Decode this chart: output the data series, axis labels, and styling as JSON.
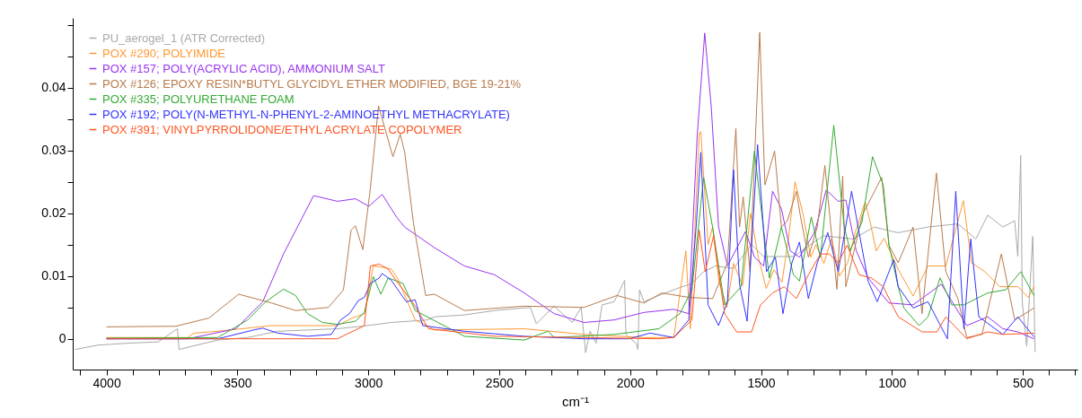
{
  "chart_data": {
    "type": "line",
    "xlabel": "cm⁻¹",
    "legend": "top left",
    "grid": false,
    "xlim": [
      4129,
      291
    ],
    "ylim": [
      -0.0049,
      0.0511
    ],
    "xticks": [
      {
        "value": 4100,
        "label": null
      },
      4000,
      {
        "value": 3900,
        "label": null
      },
      {
        "value": 3800,
        "label": null
      },
      {
        "value": 3700,
        "label": null
      },
      {
        "value": 3600,
        "label": null
      },
      3500,
      {
        "value": 3400,
        "label": null
      },
      {
        "value": 3300,
        "label": null
      },
      {
        "value": 3200,
        "label": null
      },
      {
        "value": 3100,
        "label": null
      },
      3000,
      {
        "value": 2900,
        "label": null
      },
      {
        "value": 2800,
        "label": null
      },
      {
        "value": 2700,
        "label": null
      },
      {
        "value": 2600,
        "label": null
      },
      2500,
      {
        "value": 2400,
        "label": null
      },
      {
        "value": 2300,
        "label": null
      },
      {
        "value": 2200,
        "label": null
      },
      {
        "value": 2100,
        "label": null
      },
      2000,
      {
        "value": 1900,
        "label": null
      },
      {
        "value": 1800,
        "label": null
      },
      {
        "value": 1700,
        "label": null
      },
      {
        "value": 1600,
        "label": null
      },
      1500,
      {
        "value": 1400,
        "label": null
      },
      {
        "value": 1300,
        "label": null
      },
      {
        "value": 1200,
        "label": null
      },
      {
        "value": 1100,
        "label": null
      },
      1000,
      {
        "value": 900,
        "label": null
      },
      {
        "value": 800,
        "label": null
      },
      {
        "value": 700,
        "label": null
      },
      {
        "value": 600,
        "label": null
      },
      500,
      {
        "value": 400,
        "label": null
      },
      {
        "value": 300,
        "label": null
      }
    ],
    "yticks": [
      0,
      {
        "value": 0.005,
        "label": null
      },
      0.01,
      {
        "value": 0.015,
        "label": null
      },
      0.02,
      {
        "value": 0.025,
        "label": null
      },
      0.03,
      {
        "value": 0.035,
        "label": null
      },
      0.04,
      {
        "value": 0.045,
        "label": null
      },
      {
        "value": 0.05,
        "label": null
      }
    ],
    "series": [
      {
        "name": "PU_aerogel_1 (ATR Corrected)",
        "color": "#a9a9a9",
        "x": [
          4120,
          4032,
          3918,
          3803,
          3729,
          3723,
          3575,
          3461,
          3346,
          3232,
          3118,
          3004,
          2912,
          2775,
          2747,
          2633,
          2518,
          2381,
          2358,
          2290,
          2221,
          2187,
          2170,
          2153,
          2130,
          2107,
          2061,
          2021,
          2016,
          1976,
          1970,
          1964,
          1947,
          1890,
          1821,
          1764,
          1719,
          1673,
          1605,
          1536,
          1490,
          1376,
          1262,
          1148,
          1068,
          999,
          976,
          862,
          748,
          679,
          634,
          576,
          531,
          519,
          508,
          502,
          485,
          462,
          453
        ],
        "values": [
          -0.0017,
          -0.001,
          -0.0007,
          -0.0005,
          0.0016,
          -0.0017,
          -0.0002,
          0.0002,
          0.0012,
          0.0014,
          0.0016,
          0.0021,
          0.0026,
          0.003,
          0.0035,
          0.0038,
          0.0045,
          0.005,
          0.0024,
          0.0052,
          0.0026,
          0.005,
          -0.0022,
          0.0012,
          -0.0007,
          0.0054,
          0.0059,
          0.0093,
          0.0007,
          -0.0008,
          -0.0017,
          0.0078,
          0.0059,
          0.0069,
          0.008,
          0.0088,
          0.0107,
          0.0116,
          0.0112,
          0.015,
          0.0131,
          0.0131,
          0.0164,
          0.0159,
          0.0178,
          0.0171,
          0.0169,
          0.0178,
          0.0183,
          0.0159,
          0.0197,
          0.0178,
          0.0188,
          0.0131,
          0.0292,
          0.0059,
          -0.0012,
          0.0163,
          -0.0021
        ]
      },
      {
        "name": "POX #290; POLYIMIDE",
        "color": "#ff9933",
        "x": [
          4000,
          3689,
          3666,
          3575,
          3369,
          3118,
          3061,
          3015,
          2981,
          2947,
          2912,
          2889,
          2821,
          2775,
          2747,
          2404,
          2176,
          1947,
          1833,
          1787,
          1770,
          1736,
          1730,
          1702,
          1685,
          1660,
          1630,
          1605,
          1570,
          1540,
          1510,
          1480,
          1450,
          1420,
          1395,
          1370,
          1340,
          1310,
          1290,
          1260,
          1230,
          1200,
          1170,
          1140,
          1102,
          1085,
          1060,
          1030,
          976,
          919,
          862,
          794,
          727,
          696,
          645,
          588,
          519,
          479,
          457
        ],
        "values": [
          0.0002,
          0.0002,
          0.0009,
          0.0012,
          0.0021,
          0.0021,
          0.0033,
          0.004,
          0.0116,
          0.0114,
          0.0111,
          0.0097,
          0.003,
          0.0021,
          0.0014,
          0.0016,
          0.0007,
          0.0002,
          0.0002,
          0.014,
          0.0016,
          0.0326,
          0.033,
          0.015,
          0.0178,
          0.009,
          0.005,
          0.012,
          0.0085,
          0.02,
          0.013,
          0.008,
          0.011,
          0.009,
          0.016,
          0.025,
          0.02,
          0.013,
          0.015,
          0.012,
          0.016,
          0.01,
          0.012,
          0.017,
          0.0218,
          0.019,
          0.014,
          0.016,
          0.0111,
          0.0068,
          0.0116,
          0.0116,
          0.022,
          0.0121,
          0.0107,
          0.0083,
          0.0083,
          0.0066,
          0.0083
        ]
      },
      {
        "name": "POX #157; POLY(ACRYLIC ACID), AMMONIUM SALT",
        "color": "#9933ee",
        "x": [
          4000,
          3689,
          3506,
          3403,
          3324,
          3209,
          3118,
          3049,
          2998,
          2947,
          2889,
          2861,
          2747,
          2633,
          2518,
          2404,
          2290,
          2176,
          2061,
          1947,
          1833,
          1776,
          1744,
          1715,
          1690,
          1662,
          1628,
          1559,
          1525,
          1490,
          1456,
          1422,
          1388,
          1353,
          1296,
          1251,
          1205,
          1176,
          1136,
          1091,
          1011,
          919,
          811,
          714,
          634,
          576,
          519,
          457
        ],
        "values": [
          0.0,
          0.0,
          0.0016,
          0.0059,
          0.0135,
          0.0228,
          0.0219,
          0.0223,
          0.0211,
          0.023,
          0.0192,
          0.0178,
          0.0145,
          0.0116,
          0.0102,
          0.0073,
          0.004,
          0.0026,
          0.003,
          0.0042,
          0.0047,
          0.004,
          0.0321,
          0.0487,
          0.0369,
          0.0178,
          0.0116,
          0.0171,
          0.013,
          0.0116,
          0.0235,
          0.0207,
          0.014,
          0.013,
          0.0169,
          0.0237,
          0.0219,
          0.0221,
          0.014,
          0.0097,
          0.0057,
          0.0054,
          0.0087,
          0.0021,
          0.0035,
          0.0016,
          0.0011,
          0.0
        ]
      },
      {
        "name": "POX #126; EPOXY RESIN*BUTYL GLYCIDYL ETHER MODIFIED, BGE 19-21%",
        "color": "#b87a4b",
        "x": [
          4000,
          3735,
          3609,
          3495,
          3369,
          3278,
          3152,
          3095,
          3066,
          3049,
          3021,
          2992,
          2961,
          2906,
          2878,
          2861,
          2827,
          2781,
          2747,
          2633,
          2404,
          2176,
          2050,
          1947,
          1879,
          1776,
          1685,
          1628,
          1596,
          1582,
          1568,
          1542,
          1505,
          1485,
          1448,
          1422,
          1399,
          1365,
          1348,
          1319,
          1285,
          1256,
          1210,
          1188,
          1176,
          1113,
          1039,
          1011,
          976,
          919,
          885,
          830,
          794,
          748,
          714,
          656,
          582,
          531,
          457
        ],
        "values": [
          0.0019,
          0.002,
          0.0033,
          0.0071,
          0.0057,
          0.0045,
          0.005,
          0.0078,
          0.0173,
          0.018,
          0.0142,
          0.024,
          0.0371,
          0.029,
          0.0326,
          0.0297,
          0.0183,
          0.0069,
          0.0071,
          0.0045,
          0.0052,
          0.005,
          0.0069,
          0.0057,
          0.0073,
          0.0066,
          0.0064,
          0.0121,
          0.0335,
          0.0178,
          0.0226,
          0.0107,
          0.0488,
          0.0245,
          0.0299,
          0.0178,
          0.0188,
          0.0235,
          0.0192,
          0.013,
          0.0178,
          0.0276,
          0.0079,
          0.0259,
          0.0083,
          0.0197,
          0.0257,
          0.0149,
          0.0121,
          0.0178,
          0.004,
          0.0264,
          0.0107,
          0.0064,
          0.0002,
          0.0007,
          0.0135,
          0.003,
          0.0049
        ]
      },
      {
        "name": "POX #335; POLYURETHANE FOAM",
        "color": "#33aa33",
        "x": [
          4000,
          3575,
          3461,
          3392,
          3324,
          3278,
          3232,
          3175,
          3118,
          3049,
          3015,
          2981,
          2952,
          2924,
          2867,
          2821,
          2633,
          2404,
          2313,
          2290,
          2061,
          1890,
          1810,
          1764,
          1719,
          1685,
          1639,
          1576,
          1525,
          1502,
          1468,
          1422,
          1376,
          1353,
          1308,
          1273,
          1222,
          1182,
          1159,
          1114,
          1074,
          1033,
          1011,
          976,
          954,
          896,
          862,
          816,
          771,
          725,
          634,
          565,
          508,
          457
        ],
        "values": [
          0.0001,
          0.0002,
          0.003,
          0.0059,
          0.0079,
          0.0069,
          0.004,
          0.0026,
          0.0023,
          0.0028,
          0.0042,
          0.0099,
          0.0071,
          0.0097,
          0.0088,
          0.0045,
          0.0004,
          -0.0002,
          0.0012,
          0.0002,
          0.0007,
          0.0016,
          0.004,
          0.0078,
          0.0257,
          0.0178,
          0.0054,
          0.0083,
          0.0299,
          0.0216,
          0.0097,
          0.0178,
          0.0102,
          0.0092,
          0.0194,
          0.013,
          0.034,
          0.0178,
          0.014,
          0.0187,
          0.029,
          0.0245,
          0.0149,
          0.0083,
          0.0049,
          0.0021,
          0.0035,
          0.0097,
          0.0054,
          0.0054,
          0.0073,
          0.0078,
          0.0107,
          0.0069
        ]
      },
      {
        "name": "POX #192; POLY(N-METHYL-N-PHENYL-2-AMINOETHYL METHACRYLATE)",
        "color": "#3333ff",
        "x": [
          4000,
          3575,
          3438,
          3403,
          3346,
          3232,
          3141,
          3106,
          3072,
          3038,
          3015,
          2992,
          2958,
          2947,
          2912,
          2855,
          2821,
          2792,
          2633,
          2404,
          2176,
          2004,
          1924,
          1833,
          1776,
          1747,
          1730,
          1702,
          1662,
          1628,
          1605,
          1582,
          1553,
          1513,
          1479,
          1445,
          1416,
          1382,
          1353,
          1319,
          1285,
          1245,
          1205,
          1154,
          1125,
          1091,
          1056,
          993,
          976,
          919,
          862,
          788,
          756,
          725,
          699,
          668,
          576,
          519,
          457
        ],
        "values": [
          0.0,
          0.0,
          0.0014,
          0.0017,
          0.0009,
          0.0004,
          0.0007,
          0.003,
          0.004,
          0.0061,
          0.0066,
          0.0088,
          0.0097,
          0.0104,
          0.0093,
          0.0059,
          0.0062,
          0.0021,
          0.0012,
          0.0004,
          0.0,
          0.0,
          0.0009,
          0.0002,
          0.003,
          0.0183,
          0.0297,
          0.0054,
          0.0021,
          0.0059,
          0.0269,
          0.0087,
          0.0028,
          0.0309,
          0.0107,
          0.013,
          0.004,
          0.0121,
          0.0154,
          0.0064,
          0.0121,
          0.0169,
          0.0107,
          0.0235,
          0.0169,
          0.0092,
          0.0059,
          0.0126,
          0.0083,
          0.0049,
          0.0059,
          0.0,
          0.0235,
          0.0016,
          0.0159,
          0.0035,
          0.0007,
          0.0035,
          0.0003
        ]
      },
      {
        "name": "POX #391; VINYLPYRROLIDONE/ETHYL ACRYLATE COPOLYMER",
        "color": "#ff5522",
        "x": [
          4000,
          3118,
          3015,
          2992,
          2958,
          2924,
          2889,
          2832,
          2770,
          2518,
          2176,
          1890,
          1833,
          1764,
          1736,
          1713,
          1681,
          1639,
          1593,
          1536,
          1502,
          1456,
          1411,
          1365,
          1319,
          1273,
          1239,
          1205,
          1171,
          1125,
          1079,
          1033,
          999,
          976,
          885,
          828,
          794,
          714,
          634,
          576,
          457
        ],
        "values": [
          0.0,
          0.0,
          0.0021,
          0.0116,
          0.0119,
          0.0111,
          0.009,
          0.0059,
          0.0016,
          0.0004,
          0.0002,
          0.0,
          0.0002,
          0.003,
          0.0173,
          0.0107,
          0.0164,
          0.004,
          0.0011,
          0.0011,
          0.0054,
          0.0073,
          0.0083,
          0.0064,
          0.0102,
          0.0135,
          0.0135,
          0.0121,
          0.0149,
          0.0102,
          0.0097,
          0.0083,
          0.0054,
          0.0035,
          0.0011,
          0.0011,
          0.0035,
          0.0,
          0.0011,
          0.0007,
          0.0009
        ]
      }
    ]
  }
}
